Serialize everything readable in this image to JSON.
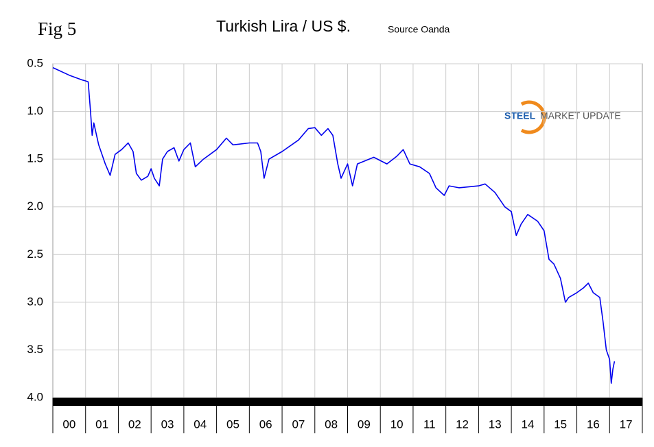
{
  "chart_data": {
    "type": "line",
    "fig_label": "Fig 5",
    "title": "Turkish Lira / US $.",
    "source": "Source Oanda",
    "logo": {
      "first": "STEEL",
      "rest": "MARKET UPDATE"
    },
    "color": "#0000ee",
    "y_reversed": true,
    "grid": true,
    "xlim": [
      0,
      18
    ],
    "xticks": [
      {
        "value": 0.5,
        "label": "00"
      },
      {
        "value": 1.5,
        "label": "01"
      },
      {
        "value": 2.5,
        "label": "02"
      },
      {
        "value": 3.5,
        "label": "03"
      },
      {
        "value": 4.5,
        "label": "04"
      },
      {
        "value": 5.5,
        "label": "05"
      },
      {
        "value": 6.5,
        "label": "06"
      },
      {
        "value": 7.5,
        "label": "07"
      },
      {
        "value": 8.5,
        "label": "08"
      },
      {
        "value": 9.5,
        "label": "09"
      },
      {
        "value": 10.5,
        "label": "10"
      },
      {
        "value": 11.5,
        "label": "11"
      },
      {
        "value": 12.5,
        "label": "12"
      },
      {
        "value": 13.5,
        "label": "13"
      },
      {
        "value": 14.5,
        "label": "14"
      },
      {
        "value": 15.5,
        "label": "15"
      },
      {
        "value": 16.5,
        "label": "16"
      },
      {
        "value": 17.5,
        "label": "17"
      }
    ],
    "ylim": [
      0.5,
      4
    ],
    "yticks": [
      0.5,
      {
        "value": 1,
        "label": "1.0"
      },
      1.5,
      {
        "value": 2,
        "label": "2.0"
      },
      2.5,
      {
        "value": 3,
        "label": "3.0"
      },
      3.5,
      {
        "value": 4,
        "label": "4.0"
      }
    ],
    "x": [
      0,
      0.5,
      0.9,
      1.0,
      1.08,
      1.15,
      1.2,
      1.25,
      1.4,
      1.6,
      1.75,
      1.9,
      2.1,
      2.3,
      2.45,
      2.55,
      2.7,
      2.9,
      3.0,
      3.1,
      3.25,
      3.35,
      3.5,
      3.7,
      3.85,
      4.0,
      4.2,
      4.35,
      4.6,
      5.0,
      5.3,
      5.5,
      6.0,
      6.25,
      6.35,
      6.45,
      6.6,
      7.0,
      7.5,
      7.8,
      8.0,
      8.2,
      8.4,
      8.55,
      8.7,
      8.8,
      9.0,
      9.15,
      9.3,
      9.8,
      10.2,
      10.5,
      10.7,
      10.9,
      11.2,
      11.5,
      11.7,
      11.95,
      12.1,
      12.4,
      13.0,
      13.2,
      13.5,
      13.8,
      14.0,
      14.15,
      14.3,
      14.5,
      14.8,
      15.0,
      15.15,
      15.3,
      15.5,
      15.65,
      15.75,
      16.0,
      16.2,
      16.35,
      16.5,
      16.7,
      16.8,
      16.9,
      17.0,
      17.05,
      17.1,
      17.15
    ],
    "values": [
      0.54,
      0.62,
      0.67,
      0.68,
      0.69,
      1.0,
      1.25,
      1.12,
      1.35,
      1.55,
      1.67,
      1.45,
      1.4,
      1.33,
      1.42,
      1.65,
      1.72,
      1.68,
      1.6,
      1.7,
      1.78,
      1.5,
      1.42,
      1.38,
      1.52,
      1.4,
      1.33,
      1.58,
      1.5,
      1.4,
      1.28,
      1.35,
      1.33,
      1.33,
      1.42,
      1.7,
      1.5,
      1.42,
      1.3,
      1.18,
      1.17,
      1.25,
      1.18,
      1.25,
      1.55,
      1.7,
      1.55,
      1.78,
      1.55,
      1.48,
      1.55,
      1.47,
      1.4,
      1.55,
      1.58,
      1.65,
      1.8,
      1.88,
      1.78,
      1.8,
      1.78,
      1.76,
      1.85,
      2.0,
      2.05,
      2.3,
      2.18,
      2.08,
      2.15,
      2.25,
      2.55,
      2.6,
      2.75,
      3.0,
      2.95,
      2.9,
      2.85,
      2.8,
      2.9,
      2.95,
      3.2,
      3.5,
      3.6,
      3.85,
      3.7,
      3.62
    ]
  }
}
